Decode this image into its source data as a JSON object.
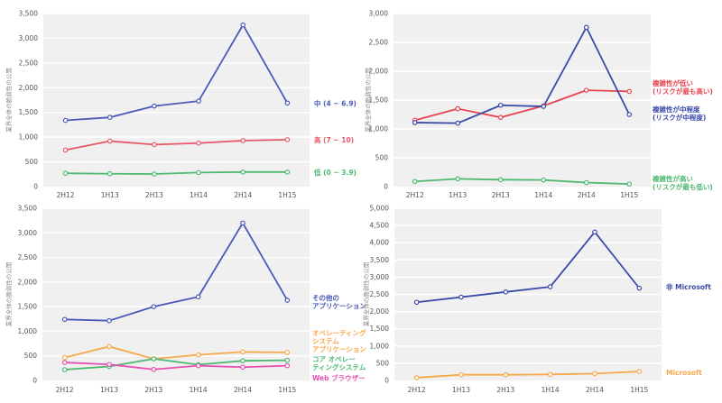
{
  "chart_data": [
    {
      "type": "line",
      "title": "",
      "ylabel": "業界全体の脆弱性の公開",
      "xlabel": "",
      "categories": [
        "2H12",
        "1H13",
        "2H13",
        "1H14",
        "2H14",
        "1H15"
      ],
      "ylim": [
        0,
        3500
      ],
      "yticks": [
        0,
        500,
        1000,
        1500,
        2000,
        2500,
        3000,
        3500
      ],
      "ytick_labels": [
        "0",
        "500",
        "1,000",
        "1,500",
        "2,000",
        "2,500",
        "3,000",
        "3,500"
      ],
      "grid": true,
      "legend_position": "right",
      "series": [
        {
          "name": "中 (4 ~ 6.9)",
          "color": "#4a5ab8",
          "legend_lines": [
            "中 (4 ~ 6.9)"
          ],
          "values": [
            1340,
            1400,
            1630,
            1730,
            3270,
            1690
          ]
        },
        {
          "name": "高 (7 ~ 10)",
          "color": "#e8576a",
          "legend_lines": [
            "高 (7 ~ 10)"
          ],
          "values": [
            740,
            920,
            850,
            880,
            930,
            950
          ]
        },
        {
          "name": "低 (0 ~ 3.9)",
          "color": "#4cb870",
          "legend_lines": [
            "低 (0 ~ 3.9)"
          ],
          "values": [
            270,
            260,
            255,
            285,
            295,
            295
          ]
        }
      ]
    },
    {
      "type": "line",
      "title": "",
      "ylabel": "業界全体の脆弱性の公開",
      "xlabel": "",
      "categories": [
        "2H12",
        "1H13",
        "2H13",
        "1H14",
        "2H14",
        "1H15"
      ],
      "ylim": [
        0,
        3000
      ],
      "yticks": [
        0,
        500,
        1000,
        1500,
        2000,
        2500,
        3000
      ],
      "ytick_labels": [
        "0",
        "500",
        "1,000",
        "1,500",
        "2,000",
        "2,500",
        "3,000"
      ],
      "grid": true,
      "legend_position": "right",
      "series": [
        {
          "name": "複雑性が低い (リスクが最も高い)",
          "color": "#e8434f",
          "legend_lines": [
            "複雑性が低い",
            "(リスクが最も高い)"
          ],
          "values": [
            1150,
            1350,
            1200,
            1400,
            1670,
            1650
          ]
        },
        {
          "name": "複雑性が中程度 (リスクが中程度)",
          "color": "#3a4aa8",
          "legend_lines": [
            "複雑性が中程度",
            "(リスクが中程度)"
          ],
          "values": [
            1110,
            1100,
            1410,
            1390,
            2760,
            1250
          ]
        },
        {
          "name": "複雑性が高い (リスクが最も低い)",
          "color": "#4cb870",
          "legend_lines": [
            "複雑性が高い",
            "(リスクが最も低い)"
          ],
          "values": [
            90,
            135,
            120,
            115,
            70,
            45
          ]
        }
      ]
    },
    {
      "type": "line",
      "title": "",
      "ylabel": "業界全体の脆弱性の公開",
      "xlabel": "",
      "categories": [
        "2H12",
        "1H13",
        "2H13",
        "1H14",
        "2H14",
        "1H15"
      ],
      "ylim": [
        0,
        3500
      ],
      "yticks": [
        0,
        500,
        1000,
        1500,
        2000,
        2500,
        3000,
        3500
      ],
      "ytick_labels": [
        "0",
        "500",
        "1,000",
        "1,500",
        "2,000",
        "2,500",
        "3,000",
        "3,500"
      ],
      "grid": true,
      "legend_position": "right",
      "series": [
        {
          "name": "その他のアプリケーション",
          "color": "#4a5ab8",
          "legend_lines": [
            "その他の",
            "アプリケーション"
          ],
          "values": [
            1240,
            1215,
            1500,
            1700,
            3200,
            1630
          ]
        },
        {
          "name": "オペレーティングシステムアプリケーション",
          "color": "#f7a84a",
          "legend_lines": [
            "オペレーティング",
            "システム",
            "アプリケーション"
          ],
          "values": [
            465,
            690,
            440,
            520,
            580,
            570
          ]
        },
        {
          "name": "コア オペレーティングシステム",
          "color": "#4cb870",
          "legend_lines": [
            "コア オペレー",
            "ティングシステム"
          ],
          "values": [
            220,
            285,
            440,
            320,
            400,
            410
          ]
        },
        {
          "name": "Web ブラウザー",
          "color": "#e84fb3",
          "legend_lines": [
            "Web ブラウザー"
          ],
          "values": [
            365,
            325,
            225,
            300,
            270,
            300
          ]
        }
      ]
    },
    {
      "type": "line",
      "title": "",
      "ylabel": "業界全体の脆弱性の公開",
      "xlabel": "",
      "categories": [
        "2H12",
        "1H13",
        "2H13",
        "1H14",
        "2H14",
        "1H15"
      ],
      "ylim": [
        0,
        5000
      ],
      "yticks": [
        0,
        500,
        1000,
        1500,
        2000,
        2500,
        3000,
        3500,
        4000,
        4500,
        5000
      ],
      "ytick_labels": [
        "0",
        "500",
        "1,000",
        "1,500",
        "2,000",
        "2,500",
        "3,000",
        "3,500",
        "4,000",
        "4,500",
        "5,000"
      ],
      "grid": true,
      "legend_position": "right",
      "series": [
        {
          "name": "非 Microsoft",
          "color": "#3a4aa8",
          "legend_lines": [
            "非 Microsoft"
          ],
          "values": [
            2270,
            2420,
            2570,
            2720,
            4310,
            2680
          ]
        },
        {
          "name": "Microsoft",
          "color": "#f7a84a",
          "legend_lines": [
            "Microsoft"
          ],
          "values": [
            80,
            165,
            165,
            175,
            200,
            260
          ]
        }
      ]
    }
  ]
}
